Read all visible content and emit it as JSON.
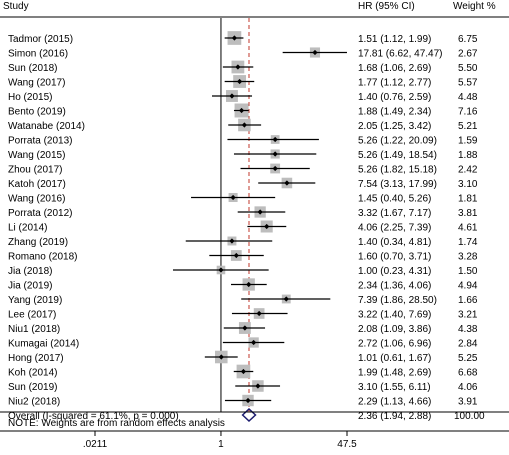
{
  "chart_data": {
    "type": "forest",
    "header": {
      "study": "Study",
      "estimate": "HR (95% CI)",
      "weight": "Weight %"
    },
    "x_scale": "log",
    "xlim": [
      0.0211,
      47.5
    ],
    "x_ticks": [
      {
        "value": 0.0211,
        "label": ".0211"
      },
      {
        "value": 1,
        "label": "1"
      },
      {
        "value": 47.5,
        "label": "47.5"
      }
    ],
    "null_line": 1,
    "overall_line": 2.36,
    "studies": [
      {
        "name": "Tadmor (2015)",
        "hr": 1.51,
        "lo": 1.12,
        "hi": 1.99,
        "ci_text": "1.51 (1.12, 1.99)",
        "weight": 6.75,
        "weight_text": "6.75"
      },
      {
        "name": "Simon (2016)",
        "hr": 17.81,
        "lo": 6.62,
        "hi": 47.47,
        "ci_text": "17.81 (6.62, 47.47)",
        "weight": 2.67,
        "weight_text": "2.67"
      },
      {
        "name": "Sun (2018)",
        "hr": 1.68,
        "lo": 1.06,
        "hi": 2.69,
        "ci_text": "1.68 (1.06, 2.69)",
        "weight": 5.5,
        "weight_text": "5.50"
      },
      {
        "name": "Wang (2017)",
        "hr": 1.77,
        "lo": 1.12,
        "hi": 2.77,
        "ci_text": "1.77 (1.12, 2.77)",
        "weight": 5.57,
        "weight_text": "5.57"
      },
      {
        "name": "Ho (2015)",
        "hr": 1.4,
        "lo": 0.76,
        "hi": 2.59,
        "ci_text": "1.40 (0.76, 2.59)",
        "weight": 4.48,
        "weight_text": "4.48"
      },
      {
        "name": "Bento (2019)",
        "hr": 1.88,
        "lo": 1.49,
        "hi": 2.34,
        "ci_text": "1.88 (1.49, 2.34)",
        "weight": 7.16,
        "weight_text": "7.16"
      },
      {
        "name": "Watanabe (2014)",
        "hr": 2.05,
        "lo": 1.25,
        "hi": 3.42,
        "ci_text": "2.05 (1.25, 3.42)",
        "weight": 5.21,
        "weight_text": "5.21"
      },
      {
        "name": "Porrata (2013)",
        "hr": 5.26,
        "lo": 1.22,
        "hi": 20.09,
        "ci_text": "5.26 (1.22, 20.09)",
        "weight": 1.59,
        "weight_text": "1.59"
      },
      {
        "name": "Wang (2015)",
        "hr": 5.26,
        "lo": 1.49,
        "hi": 18.54,
        "ci_text": "5.26 (1.49, 18.54)",
        "weight": 1.88,
        "weight_text": "1.88"
      },
      {
        "name": "Zhou (2017)",
        "hr": 5.26,
        "lo": 1.82,
        "hi": 15.18,
        "ci_text": "5.26 (1.82, 15.18)",
        "weight": 2.42,
        "weight_text": "2.42"
      },
      {
        "name": "Katoh (2017)",
        "hr": 7.54,
        "lo": 3.13,
        "hi": 17.99,
        "ci_text": "7.54 (3.13, 17.99)",
        "weight": 3.1,
        "weight_text": "3.10"
      },
      {
        "name": "Wang (2016)",
        "hr": 1.45,
        "lo": 0.4,
        "hi": 5.26,
        "ci_text": "1.45 (0.40, 5.26)",
        "weight": 1.81,
        "weight_text": "1.81"
      },
      {
        "name": "Porrata (2012)",
        "hr": 3.32,
        "lo": 1.67,
        "hi": 7.17,
        "ci_text": "3.32 (1.67, 7.17)",
        "weight": 3.81,
        "weight_text": "3.81"
      },
      {
        "name": "Li (2014)",
        "hr": 4.06,
        "lo": 2.25,
        "hi": 7.39,
        "ci_text": "4.06 (2.25, 7.39)",
        "weight": 4.61,
        "weight_text": "4.61"
      },
      {
        "name": "Zhang (2019)",
        "hr": 1.4,
        "lo": 0.34,
        "hi": 4.81,
        "ci_text": "1.40 (0.34, 4.81)",
        "weight": 1.74,
        "weight_text": "1.74"
      },
      {
        "name": "Romano (2018)",
        "hr": 1.6,
        "lo": 0.7,
        "hi": 3.71,
        "ci_text": "1.60 (0.70, 3.71)",
        "weight": 3.28,
        "weight_text": "3.28"
      },
      {
        "name": "Jia (2018)",
        "hr": 1.0,
        "lo": 0.23,
        "hi": 4.31,
        "ci_text": "1.00 (0.23, 4.31)",
        "weight": 1.5,
        "weight_text": "1.50"
      },
      {
        "name": "Jia (2019)",
        "hr": 2.34,
        "lo": 1.36,
        "hi": 4.06,
        "ci_text": "2.34 (1.36, 4.06)",
        "weight": 4.94,
        "weight_text": "4.94"
      },
      {
        "name": "Yang (2019)",
        "hr": 7.39,
        "lo": 1.86,
        "hi": 28.5,
        "ci_text": "7.39 (1.86, 28.50)",
        "weight": 1.66,
        "weight_text": "1.66"
      },
      {
        "name": "Lee (2017)",
        "hr": 3.22,
        "lo": 1.4,
        "hi": 7.69,
        "ci_text": "3.22 (1.40, 7.69)",
        "weight": 3.21,
        "weight_text": "3.21"
      },
      {
        "name": "Niu1 (2018)",
        "hr": 2.08,
        "lo": 1.09,
        "hi": 3.86,
        "ci_text": "2.08 (1.09, 3.86)",
        "weight": 4.38,
        "weight_text": "4.38"
      },
      {
        "name": "Kumagai (2014)",
        "hr": 2.72,
        "lo": 1.06,
        "hi": 6.96,
        "ci_text": "2.72 (1.06, 6.96)",
        "weight": 2.84,
        "weight_text": "2.84"
      },
      {
        "name": "Hong (2017)",
        "hr": 1.01,
        "lo": 0.61,
        "hi": 1.67,
        "ci_text": "1.01 (0.61, 1.67)",
        "weight": 5.25,
        "weight_text": "5.25"
      },
      {
        "name": "Koh (2014)",
        "hr": 1.99,
        "lo": 1.48,
        "hi": 2.69,
        "ci_text": "1.99 (1.48, 2.69)",
        "weight": 6.68,
        "weight_text": "6.68"
      },
      {
        "name": "Sun (2019)",
        "hr": 3.1,
        "lo": 1.55,
        "hi": 6.11,
        "ci_text": "3.10 (1.55, 6.11)",
        "weight": 4.06,
        "weight_text": "4.06"
      },
      {
        "name": "Niu2 (2018)",
        "hr": 2.29,
        "lo": 1.13,
        "hi": 4.66,
        "ci_text": "2.29 (1.13, 4.66)",
        "weight": 3.91,
        "weight_text": "3.91"
      }
    ],
    "overall": {
      "label": "Overall  (I-squared = 61.1%, p = 0.000)",
      "hr": 2.36,
      "lo": 1.94,
      "hi": 2.88,
      "ci_text": "2.36 (1.94, 2.88)",
      "weight_text": "100.00"
    },
    "note": "NOTE: Weights are from random effects analysis",
    "colors": {
      "box": "#bdbdbd",
      "marker": "#000000",
      "diamond": "#1c1c6e",
      "overall_line": "#c0392b",
      "line": "#000000"
    }
  }
}
